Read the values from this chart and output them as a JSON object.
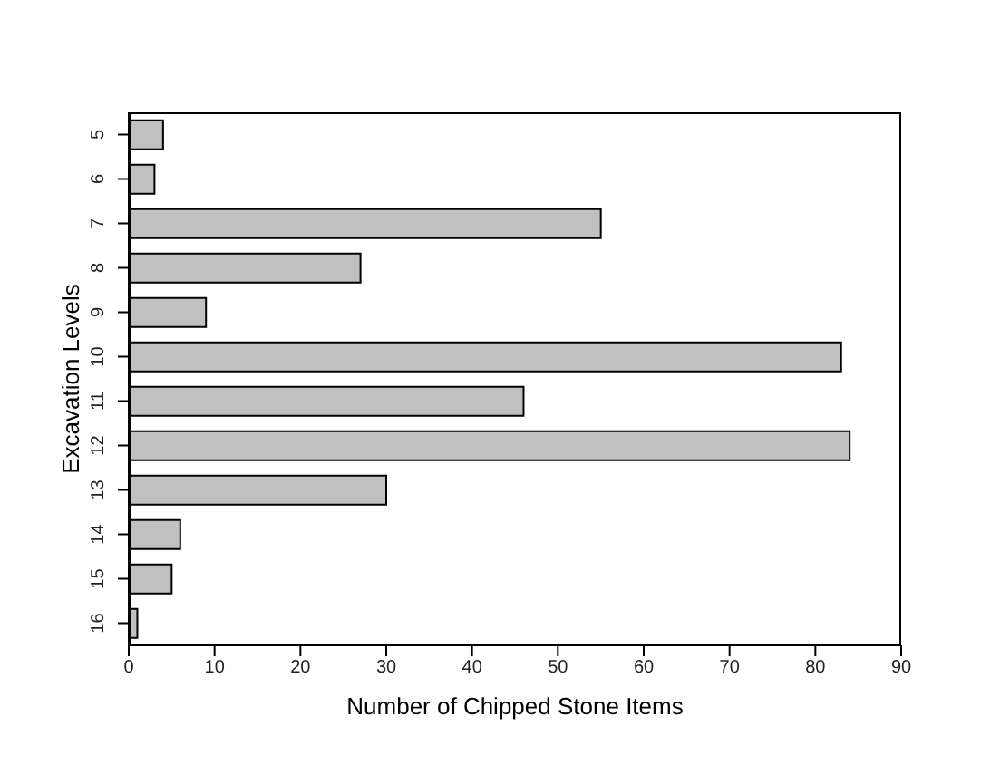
{
  "chart_data": {
    "type": "bar",
    "orientation": "horizontal",
    "xlabel": "Number of Chipped Stone Items",
    "ylabel": "Excavation Levels",
    "categories": [
      "5",
      "6",
      "7",
      "8",
      "9",
      "10",
      "11",
      "12",
      "13",
      "14",
      "15",
      "16"
    ],
    "values": [
      4,
      3,
      55,
      27,
      9,
      83,
      46,
      84,
      30,
      6,
      5,
      1
    ],
    "color": "#c0c0c0",
    "xlim": [
      0,
      90
    ],
    "xticks": [
      0,
      10,
      20,
      30,
      40,
      50,
      60,
      70,
      80,
      90
    ],
    "grid": false
  }
}
